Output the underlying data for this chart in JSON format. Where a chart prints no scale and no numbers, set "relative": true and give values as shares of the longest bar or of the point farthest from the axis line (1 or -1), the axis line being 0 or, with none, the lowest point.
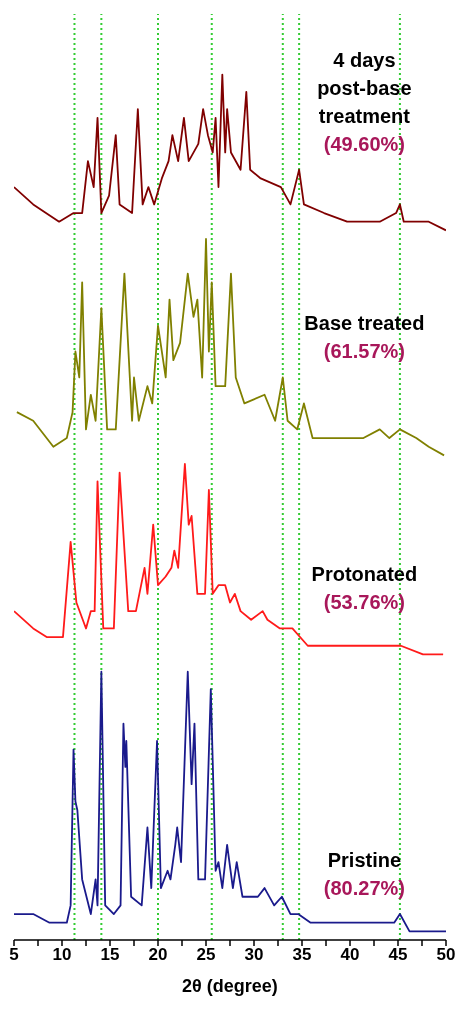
{
  "chart_data": {
    "type": "line",
    "relative": true,
    "xlabel": "2θ (degree)",
    "xlim": [
      5,
      50
    ],
    "xticks": [
      5,
      {
        "value": 7.5,
        "label": null
      },
      10,
      {
        "value": 12.5,
        "label": null
      },
      15,
      {
        "value": 17.5,
        "label": null
      },
      20,
      {
        "value": 22.5,
        "label": null
      },
      25,
      {
        "value": 27.5,
        "label": null
      },
      30,
      {
        "value": 32.5,
        "label": null
      },
      35,
      {
        "value": 37.5,
        "label": null
      },
      40,
      {
        "value": 42.5,
        "label": null
      },
      45,
      {
        "value": 47.5,
        "label": null
      },
      50
    ],
    "ref_lines": [
      {
        "axis": "x",
        "value": 11.3,
        "label": null,
        "color": "#33cc33",
        "line_style": "dotted"
      },
      {
        "axis": "x",
        "value": 14.1,
        "label": null,
        "color": "#33cc33",
        "line_style": "dotted"
      },
      {
        "axis": "x",
        "value": 20.0,
        "label": null,
        "color": "#33cc33",
        "line_style": "dotted"
      },
      {
        "axis": "x",
        "value": 25.6,
        "label": null,
        "color": "#33cc33",
        "line_style": "dotted"
      },
      {
        "axis": "x",
        "value": 33.0,
        "label": null,
        "color": "#33cc33",
        "line_style": "dotted"
      },
      {
        "axis": "x",
        "value": 34.7,
        "label": null,
        "color": "#33cc33",
        "line_style": "dotted"
      },
      {
        "axis": "x",
        "value": 45.2,
        "label": null,
        "color": "#33cc33",
        "line_style": "dotted"
      }
    ],
    "annotations": [
      "(49.60%)",
      "(61.57%)",
      "(53.76%)",
      "(80.27%)"
    ],
    "series": [
      {
        "name": "4 days post-base treatment",
        "color": "#800000",
        "x": [
          5,
          7.0,
          9.7,
          11.2,
          12.1,
          12.7,
          13.3,
          13.7,
          14.1,
          14.9,
          15.6,
          16.0,
          17.3,
          17.9,
          18.4,
          19.0,
          19.6,
          20.4,
          21.1,
          21.5,
          22.1,
          22.7,
          23.2,
          24.2,
          24.7,
          25.2,
          25.7,
          26.0,
          26.3,
          26.7,
          27.0,
          27.2,
          27.6,
          28.6,
          29.2,
          29.6,
          30.7,
          32.8,
          33.8,
          34.7,
          35.2,
          37.3,
          39.7,
          43.1,
          44.8,
          45.2,
          45.6,
          48.2,
          50
        ],
        "values": [
          0.87,
          0.85,
          0.83,
          0.84,
          0.84,
          0.9,
          0.87,
          0.95,
          0.84,
          0.86,
          0.93,
          0.85,
          0.84,
          0.96,
          0.85,
          0.87,
          0.85,
          0.88,
          0.9,
          0.93,
          0.9,
          0.95,
          0.9,
          0.92,
          0.96,
          0.93,
          0.91,
          0.95,
          0.87,
          1,
          0.91,
          0.96,
          0.91,
          0.89,
          0.98,
          0.89,
          0.88,
          0.87,
          0.85,
          0.89,
          0.85,
          0.84,
          0.83,
          0.83,
          0.84,
          0.85,
          0.83,
          0.83,
          0.82
        ]
      },
      {
        "name": "Base treated",
        "color": "#808000",
        "x": [
          5.3,
          7.0,
          9.1,
          10.5,
          11.1,
          11.4,
          11.8,
          12.1,
          12.5,
          13.0,
          13.5,
          14.1,
          14.7,
          15.6,
          16.5,
          17.3,
          17.5,
          18.0,
          18.9,
          19.4,
          20.0,
          20.8,
          21.2,
          21.6,
          22.3,
          23.1,
          23.7,
          24.1,
          24.6,
          25.0,
          25.3,
          25.6,
          26.0,
          27.0,
          27.6,
          28.1,
          29.0,
          31.1,
          32.2,
          33.0,
          33.5,
          34.5,
          35.2,
          36.1,
          38.0,
          41.4,
          43.1,
          44.1,
          45.2,
          46.9,
          48.2,
          49.8
        ],
        "values": [
          0.61,
          0.6,
          0.57,
          0.58,
          0.61,
          0.68,
          0.65,
          0.76,
          0.59,
          0.63,
          0.6,
          0.73,
          0.59,
          0.59,
          0.77,
          0.6,
          0.65,
          0.6,
          0.64,
          0.62,
          0.71,
          0.65,
          0.74,
          0.67,
          0.69,
          0.77,
          0.72,
          0.74,
          0.65,
          0.81,
          0.68,
          0.76,
          0.64,
          0.64,
          0.77,
          0.65,
          0.62,
          0.63,
          0.6,
          0.65,
          0.6,
          0.59,
          0.62,
          0.58,
          0.58,
          0.58,
          0.59,
          0.58,
          0.59,
          0.58,
          0.57,
          0.56
        ]
      },
      {
        "name": "Protonated",
        "color": "#ff1a1a",
        "x": [
          5,
          7.0,
          8.4,
          10.1,
          10.9,
          11.5,
          12.5,
          13.0,
          13.4,
          13.7,
          14.3,
          15.4,
          16.0,
          16.9,
          17.7,
          18.6,
          18.9,
          19.5,
          20.0,
          20.8,
          21.4,
          21.7,
          22.1,
          22.8,
          23.2,
          23.5,
          24.1,
          24.9,
          25.3,
          25.7,
          26.3,
          27.0,
          27.5,
          28.0,
          28.6,
          29.7,
          30.9,
          31.4,
          32.7,
          34.0,
          35.6,
          38.0,
          41.0,
          43.1,
          44.8,
          45.3,
          47.6,
          49.7
        ],
        "values": [
          0.38,
          0.36,
          0.35,
          0.35,
          0.46,
          0.39,
          0.36,
          0.38,
          0.38,
          0.53,
          0.36,
          0.36,
          0.54,
          0.38,
          0.38,
          0.43,
          0.4,
          0.48,
          0.41,
          0.42,
          0.43,
          0.45,
          0.43,
          0.55,
          0.48,
          0.49,
          0.4,
          0.4,
          0.52,
          0.4,
          0.41,
          0.41,
          0.39,
          0.4,
          0.38,
          0.37,
          0.38,
          0.37,
          0.36,
          0.36,
          0.34,
          0.34,
          0.34,
          0.34,
          0.34,
          0.34,
          0.33,
          0.33
        ]
      },
      {
        "name": "Pristine",
        "color": "#1a1a8c",
        "x": [
          5,
          5.6,
          7.0,
          8.7,
          10.5,
          10.9,
          11.2,
          11.4,
          11.6,
          12.1,
          13.0,
          13.5,
          13.7,
          14.1,
          14.5,
          15.4,
          16.1,
          16.4,
          16.6,
          16.7,
          17.2,
          18.3,
          18.9,
          19.3,
          19.9,
          20.3,
          21.0,
          21.3,
          21.8,
          22.0,
          22.4,
          23.1,
          23.5,
          23.8,
          24.2,
          24.9,
          25.5,
          26.0,
          26.3,
          26.7,
          27.2,
          27.8,
          28.2,
          28.8,
          30.4,
          31.1,
          32.1,
          32.9,
          33.8,
          34.6,
          35.9,
          37.1,
          39.4,
          41.4,
          42.8,
          44.6,
          45.2,
          46.2,
          48.2,
          50
        ],
        "values": [
          0.03,
          0.03,
          0.03,
          0.02,
          0.02,
          0.04,
          0.22,
          0.16,
          0.15,
          0.07,
          0.03,
          0.07,
          0.04,
          0.31,
          0.04,
          0.03,
          0.04,
          0.25,
          0.2,
          0.23,
          0.05,
          0.04,
          0.13,
          0.06,
          0.23,
          0.06,
          0.08,
          0.07,
          0.11,
          0.13,
          0.09,
          0.31,
          0.18,
          0.25,
          0.07,
          0.07,
          0.29,
          0.08,
          0.09,
          0.06,
          0.11,
          0.06,
          0.09,
          0.05,
          0.05,
          0.06,
          0.04,
          0.05,
          0.03,
          0.03,
          0.02,
          0.02,
          0.02,
          0.02,
          0.02,
          0.02,
          0.03,
          0.01,
          0.01,
          0.01
        ]
      }
    ]
  }
}
